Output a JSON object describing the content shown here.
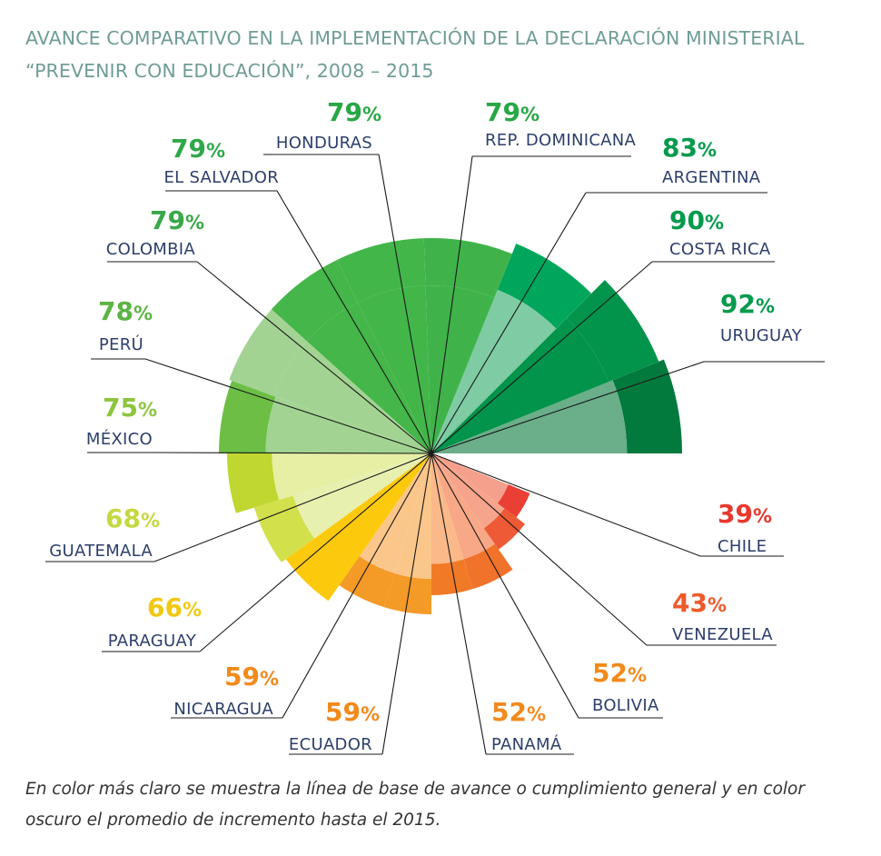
{
  "title": {
    "line1": "AVANCE COMPARATIVO EN LA IMPLEMENTACIÓN DE LA DECLARACIÓN MINISTERIAL",
    "line2": "“PREVENIR CON EDUCACIÓN”, 2008 – 2015"
  },
  "caption": {
    "line1": "En color más claro se muestra la línea de base de avance o cumplimiento general y en color",
    "line2": "oscuro el promedio de incremento hasta el 2015."
  },
  "chart_data": {
    "type": "radial-bar",
    "unit": "%",
    "max": 100,
    "countries": [
      {
        "name": "URUGUAY",
        "value": 92,
        "color_dark": "#027a3e",
        "color_light": "#6aae8a",
        "pct_color": "#049a4c"
      },
      {
        "name": "COSTA RICA",
        "value": 90,
        "color_dark": "#02944a",
        "color_light": "#02944a",
        "pct_color": "#049a4c"
      },
      {
        "name": "ARGENTINA",
        "value": 83,
        "color_dark": "#00a65c",
        "color_light": "#7fcba4",
        "pct_color": "#049a4c"
      },
      {
        "name": "REP. DOMINICANA",
        "value": 79,
        "color_dark": "#3fb34a",
        "color_light": "#3fb34a",
        "pct_color": "#28a745"
      },
      {
        "name": "HONDURAS",
        "value": 79,
        "color_dark": "#43b64a",
        "color_light": "#43b64a",
        "pct_color": "#28a745"
      },
      {
        "name": "EL SALVADOR",
        "value": 79,
        "color_dark": "#45b649",
        "color_light": "#45b649",
        "pct_color": "#2fa84a"
      },
      {
        "name": "COLOMBIA",
        "value": 79,
        "color_dark": "#a2d392",
        "color_light": "#a2d392",
        "pct_color": "#3aa84a"
      },
      {
        "name": "PERÚ",
        "value": 78,
        "color_dark": "#6cbe45",
        "color_light": "#a2d392",
        "pct_color": "#5bb443"
      },
      {
        "name": "MÉXICO",
        "value": 75,
        "color_dark": "#bfd730",
        "color_light": "#e6efa4",
        "pct_color": "#8cc63e"
      },
      {
        "name": "GUATEMALA",
        "value": 68,
        "color_dark": "#d2e04b",
        "color_light": "#e8f0b0",
        "pct_color": "#c5d842"
      },
      {
        "name": "PARAGUAY",
        "value": 66,
        "color_dark": "#fcc90d",
        "color_light": "#fcc90d",
        "pct_color": "#f2c811"
      },
      {
        "name": "NICARAGUA",
        "value": 59,
        "color_dark": "#f49a26",
        "color_light": "#fbc68a",
        "pct_color": "#f28a1c"
      },
      {
        "name": "ECUADOR",
        "value": 59,
        "color_dark": "#f49a26",
        "color_light": "#fbc68a",
        "pct_color": "#f28a1c"
      },
      {
        "name": "PANAMÁ",
        "value": 52,
        "color_dark": "#f17a27",
        "color_light": "#fbb98a",
        "pct_color": "#f28a1c"
      },
      {
        "name": "BOLIVIA",
        "value": 52,
        "color_dark": "#f1722a",
        "color_light": "#f8a887",
        "pct_color": "#f28a1c"
      },
      {
        "name": "VENEZUELA",
        "value": 43,
        "color_dark": "#ee5a35",
        "color_light": "#f6a48b",
        "pct_color": "#ef5a2b"
      },
      {
        "name": "CHILE",
        "value": 39,
        "color_dark": "#ea3f34",
        "color_light": "#f5a08c",
        "pct_color": "#e8382d"
      }
    ]
  }
}
